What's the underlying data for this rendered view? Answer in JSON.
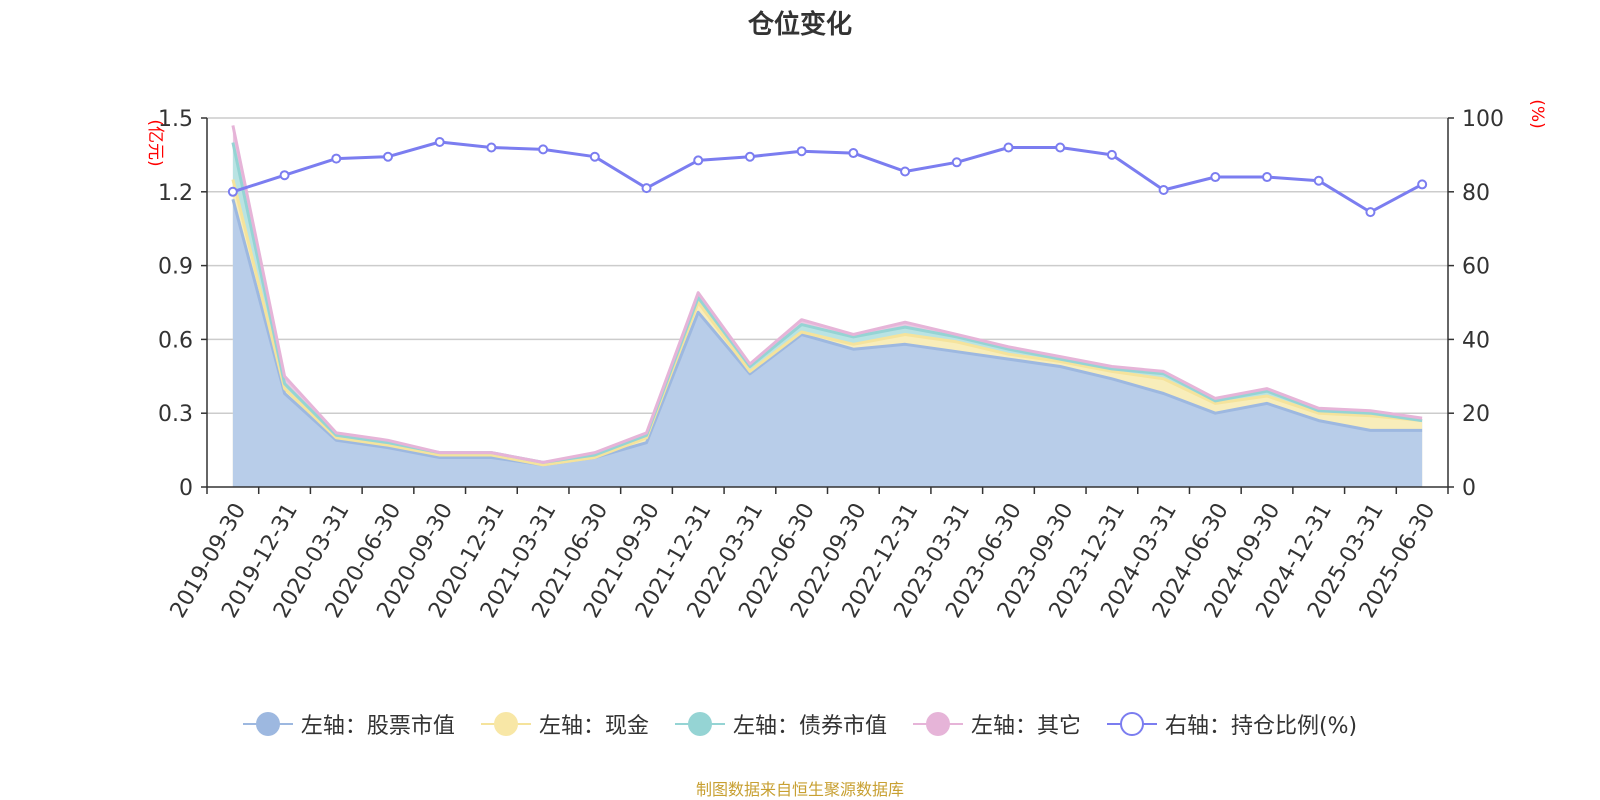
{
  "chart_data": {
    "type": "area",
    "title": "仓位变化",
    "y_left_unit": "(亿元)",
    "y_right_unit": "(%)",
    "y_left_range": [
      0,
      1.5
    ],
    "y_left_ticks": [
      "0",
      "0.3",
      "0.6",
      "0.9",
      "1.2",
      "1.5"
    ],
    "y_right_range": [
      0,
      100
    ],
    "y_right_ticks": [
      "0",
      "20",
      "40",
      "60",
      "80",
      "100"
    ],
    "grid": true,
    "legend_position": "bottom",
    "x": [
      "2019-09-30",
      "2019-12-31",
      "2020-03-31",
      "2020-06-30",
      "2020-09-30",
      "2020-12-31",
      "2021-03-31",
      "2021-06-30",
      "2021-09-30",
      "2021-12-31",
      "2022-03-31",
      "2022-06-30",
      "2022-09-30",
      "2022-12-31",
      "2023-03-31",
      "2023-06-30",
      "2023-09-30",
      "2023-12-31",
      "2024-03-31",
      "2024-06-30",
      "2024-09-30",
      "2024-12-31",
      "2025-03-31",
      "2025-06-30"
    ],
    "series": [
      {
        "name": "左轴：股票市值",
        "axis": "left",
        "kind": "stacked-area",
        "color": "#9db8e0",
        "fill": "#b8cde9",
        "values": [
          1.17,
          0.38,
          0.19,
          0.16,
          0.12,
          0.12,
          0.09,
          0.12,
          0.18,
          0.71,
          0.46,
          0.62,
          0.56,
          0.58,
          0.55,
          0.52,
          0.49,
          0.44,
          0.38,
          0.3,
          0.34,
          0.27,
          0.23,
          0.23
        ]
      },
      {
        "name": "左轴：现金",
        "axis": "left",
        "kind": "stacked-area",
        "color": "#f5e39c",
        "fill": "#f8edba",
        "values": [
          0.08,
          0.02,
          0.01,
          0.01,
          0.01,
          0.01,
          0.0,
          0.0,
          0.02,
          0.04,
          0.01,
          0.01,
          0.02,
          0.04,
          0.04,
          0.02,
          0.02,
          0.03,
          0.06,
          0.04,
          0.03,
          0.03,
          0.06,
          0.04
        ]
      },
      {
        "name": "左轴：债券市值",
        "axis": "left",
        "kind": "stacked-area",
        "color": "#95d4d4",
        "fill": "#b9e3e3",
        "values": [
          0.15,
          0.02,
          0.01,
          0.01,
          0.01,
          0.01,
          0.01,
          0.01,
          0.01,
          0.02,
          0.02,
          0.03,
          0.03,
          0.03,
          0.02,
          0.02,
          0.01,
          0.01,
          0.02,
          0.01,
          0.02,
          0.01,
          0.01,
          0.0
        ]
      },
      {
        "name": "左轴：其它",
        "axis": "left",
        "kind": "stacked-area",
        "color": "#e6b4d8",
        "fill": "#eac8e2",
        "values": [
          0.07,
          0.03,
          0.01,
          0.01,
          0.0,
          0.0,
          0.0,
          0.01,
          0.01,
          0.02,
          0.01,
          0.02,
          0.01,
          0.02,
          0.01,
          0.01,
          0.01,
          0.01,
          0.01,
          0.01,
          0.01,
          0.01,
          0.01,
          0.01
        ]
      },
      {
        "name": "右轴：持仓比例(%)",
        "axis": "right",
        "kind": "line",
        "color": "#7b7df0",
        "values": [
          80,
          84.5,
          89,
          89.5,
          93.5,
          92,
          91.5,
          89.5,
          81,
          88.5,
          89.5,
          91,
          90.5,
          85.5,
          88,
          92,
          92,
          90,
          80.5,
          84,
          84,
          83,
          74.5,
          82
        ]
      }
    ]
  },
  "source_note": "制图数据来自恒生聚源数据库"
}
